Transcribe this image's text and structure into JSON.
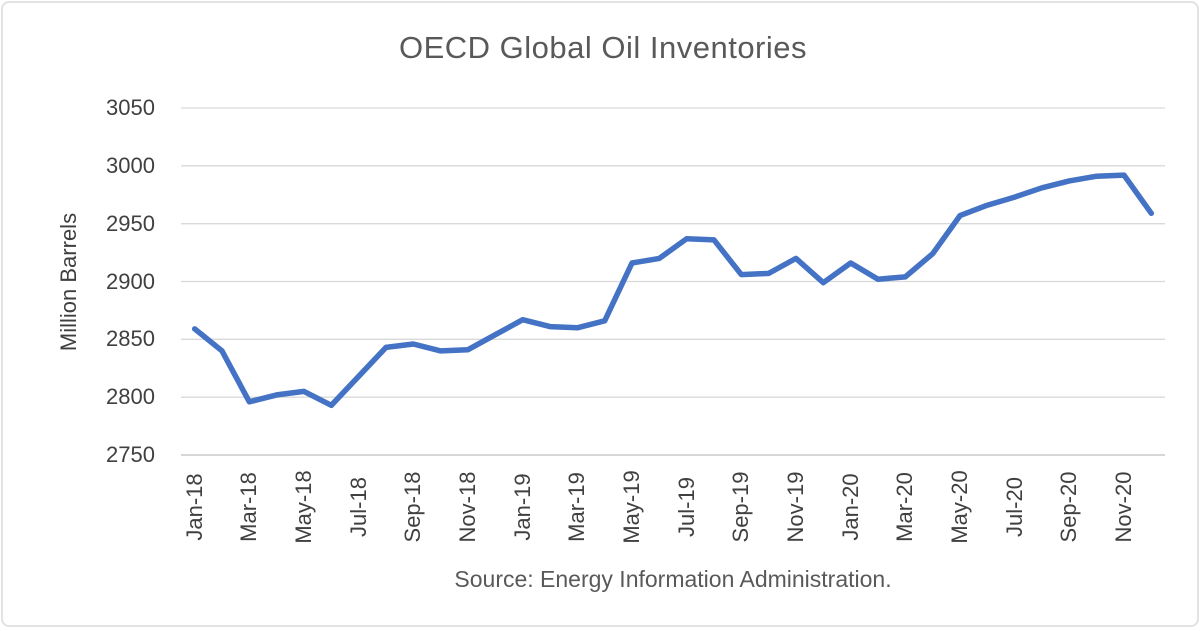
{
  "colors": {
    "series_line": "#4472C4",
    "gridline": "#d9d9d9",
    "axis_line": "#bfbfbf",
    "title_text": "#595959",
    "tick_text": "#404040",
    "card_border": "#e2e2e2",
    "background": "#ffffff"
  },
  "chart_data": {
    "type": "line",
    "title": "OECD Global Oil Inventories",
    "ylabel": "Million Barrels",
    "xlabel": "",
    "source_note": "Source: Energy Information Administration.",
    "grid": true,
    "legend": "none",
    "ylim": [
      2750,
      3050
    ],
    "y_ticks": [
      2750,
      2800,
      2850,
      2900,
      2950,
      3000,
      3050
    ],
    "x": [
      "Jan-18",
      "Feb-18",
      "Mar-18",
      "Apr-18",
      "May-18",
      "Jun-18",
      "Jul-18",
      "Aug-18",
      "Sep-18",
      "Oct-18",
      "Nov-18",
      "Dec-18",
      "Jan-19",
      "Feb-19",
      "Mar-19",
      "Apr-19",
      "May-19",
      "Jun-19",
      "Jul-19",
      "Aug-19",
      "Sep-19",
      "Oct-19",
      "Nov-19",
      "Dec-19",
      "Jan-20",
      "Feb-20",
      "Mar-20",
      "Apr-20",
      "May-20",
      "Jun-20",
      "Jul-20",
      "Aug-20",
      "Sep-20",
      "Oct-20",
      "Nov-20",
      "Dec-20"
    ],
    "x_tick_labels": [
      "Jan-18",
      "Mar-18",
      "May-18",
      "Jul-18",
      "Sep-18",
      "Nov-18",
      "Jan-19",
      "Mar-19",
      "May-19",
      "Jul-19",
      "Sep-19",
      "Nov-19",
      "Jan-20",
      "Mar-20",
      "May-20",
      "Jul-20",
      "Sep-20",
      "Nov-20"
    ],
    "series": [
      {
        "name": "OECD global oil inventories",
        "color": "#4472C4",
        "values": [
          2859,
          2840,
          2796,
          2802,
          2805,
          2793,
          2818,
          2843,
          2846,
          2840,
          2841,
          2854,
          2867,
          2861,
          2860,
          2866,
          2916,
          2920,
          2937,
          2936,
          2906,
          2907,
          2920,
          2899,
          2916,
          2902,
          2904,
          2924,
          2957,
          2966,
          2973,
          2981,
          2987,
          2991,
          2992,
          2959
        ]
      }
    ]
  }
}
